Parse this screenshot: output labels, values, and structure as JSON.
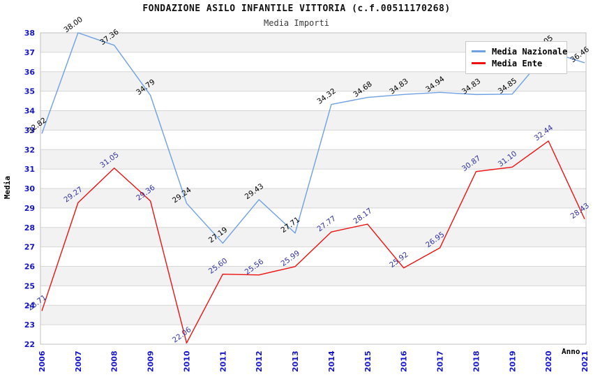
{
  "title": "FONDAZIONE ASILO INFANTILE VITTORIA (c.f.00511170268)",
  "subtitle": "Media Importi",
  "axis": {
    "y_title": "Media",
    "x_title": "Anno"
  },
  "legend": {
    "items": [
      {
        "label": "Media Nazionale",
        "color": "#6fa0e2"
      },
      {
        "label": "Media Ente",
        "color": "#ee1111"
      }
    ]
  },
  "colors": {
    "tick_label": "#1414cc",
    "grid_line": "#d6d6d6",
    "band_fill": "#f2f2f2",
    "plot_border": "#c0c0c0",
    "nazionale_line": "#6fa0e2",
    "nazionale_point_label": "#000000",
    "ente_line": "#ee1111",
    "ente_point_label": "#3333a0"
  },
  "chart_data": {
    "type": "line",
    "title": "FONDAZIONE ASILO INFANTILE VITTORIA (c.f.00511170268)",
    "subtitle": "Media Importi",
    "xlabel": "Anno",
    "ylabel": "Media",
    "ylim": [
      22,
      38
    ],
    "y_ticks": [
      22,
      23,
      24,
      25,
      26,
      27,
      28,
      29,
      30,
      31,
      32,
      33,
      34,
      35,
      36,
      37,
      38
    ],
    "grid": true,
    "banded_background": true,
    "legend_position": "top-right",
    "x": [
      2006,
      2007,
      2008,
      2009,
      2010,
      2011,
      2012,
      2013,
      2014,
      2015,
      2016,
      2017,
      2018,
      2019,
      2020,
      2021
    ],
    "series": [
      {
        "name": "Media Nazionale",
        "color": "#6fa0e2",
        "label_color": "#000000",
        "values": [
          32.82,
          38.0,
          37.36,
          34.79,
          29.24,
          27.19,
          29.43,
          27.71,
          34.32,
          34.68,
          34.83,
          34.94,
          34.83,
          34.85,
          37.05,
          36.46
        ]
      },
      {
        "name": "Media Ente",
        "color": "#ee1111",
        "label_color": "#3333a0",
        "values": [
          23.71,
          29.27,
          31.05,
          29.36,
          22.06,
          25.6,
          25.56,
          25.99,
          27.77,
          28.17,
          25.92,
          26.95,
          30.87,
          31.1,
          32.44,
          28.43
        ]
      }
    ]
  }
}
